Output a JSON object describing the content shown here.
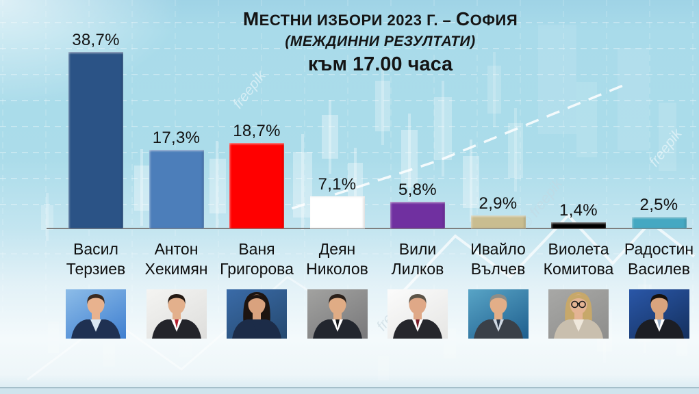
{
  "title": {
    "l1_lead1": "М",
    "l1_part1": "естни избори 2023 г. – ",
    "l1_lead2": "С",
    "l1_part2": "офия",
    "line2": "(Междинни резултати)",
    "line3": "към 17.00 часа"
  },
  "watermark": {
    "text": "freepik",
    "copy_text": "© freepik"
  },
  "chart_data": {
    "type": "bar",
    "title": "Местни избори 2023 г. – София",
    "subtitle": "(Междинни резултати)",
    "note": "към 17.00 часа",
    "categories": [
      "Васил Терзиев",
      "Антон Хекимян",
      "Ваня Григорова",
      "Деян Николов",
      "Вили Лилков",
      "Ивайло Вълчев",
      "Виолета Комитова",
      "Радостин Василев"
    ],
    "values": [
      38.7,
      17.3,
      18.7,
      7.1,
      5.8,
      2.9,
      1.4,
      2.5
    ],
    "value_labels": [
      "38,7%",
      "17,3%",
      "18,7%",
      "7,1%",
      "5,8%",
      "2,9%",
      "1,4%",
      "2,5%"
    ],
    "bar_colors": [
      "#2B5386",
      "#4C7EBA",
      "#FF0000",
      "#FFFFFF",
      "#7030A0",
      "#C9BD90",
      "#000000",
      "#45A8C2"
    ],
    "xlabel": "",
    "ylabel": "",
    "ylim": [
      0,
      40
    ],
    "grid": true,
    "legend": false
  },
  "candidates": [
    {
      "first": "Васил",
      "last": "Терзиев",
      "pct": "38,7%",
      "photo": {
        "pbg1": "#8cbce8",
        "pbg2": "#3f7fd0",
        "suit": "#1f3152",
        "skin": "#e8b28e",
        "hair": "#3a2a20",
        "tie": "none",
        "shirt": "#d9e7f4",
        "style": "man",
        "glasses": false,
        "has_tie": false
      }
    },
    {
      "first": "Антон",
      "last": "Хекимян",
      "pct": "17,3%",
      "photo": {
        "pbg1": "#f4f4f2",
        "pbg2": "#dededc",
        "suit": "#23242a",
        "skin": "#e3b08c",
        "hair": "#241a14",
        "tie": "#b22030",
        "shirt": "#ffffff",
        "style": "man",
        "glasses": false,
        "has_tie": true
      }
    },
    {
      "first": "Ваня",
      "last": "Григорова",
      "pct": "18,7%",
      "photo": {
        "pbg1": "#3a6ba8",
        "pbg2": "#25496f",
        "suit": "#1c2c48",
        "skin": "#d9a27e",
        "hair": "#1d1410",
        "tie": "none",
        "shirt": "#1c2c48",
        "style": "woman",
        "glasses": false,
        "has_tie": false
      }
    },
    {
      "first": "Деян",
      "last": "Николов",
      "pct": "7,1%",
      "photo": {
        "pbg1": "#a2a2a0",
        "pbg2": "#78787a",
        "suit": "#22262e",
        "skin": "#e0ac85",
        "hair": "#2a201a",
        "tie": "#16181c",
        "shirt": "#ffffff",
        "style": "man",
        "glasses": false,
        "has_tie": true
      }
    },
    {
      "first": "Вили",
      "last": "Лилков",
      "pct": "5,8%",
      "photo": {
        "pbg1": "#fbfbfb",
        "pbg2": "#e6e6e4",
        "suit": "#26272c",
        "skin": "#dfa887",
        "hair": "#5c5448",
        "tie": "#7a1f2b",
        "shirt": "#ffffff",
        "style": "man",
        "glasses": false,
        "has_tie": true
      }
    },
    {
      "first": "Ивайло",
      "last": "Вълчев",
      "pct": "2,9%",
      "photo": {
        "pbg1": "#58a4c6",
        "pbg2": "#1f5f8e",
        "suit": "#3a4048",
        "skin": "#e2ae88",
        "hair": "#8d8d88",
        "tie": "#2e3a4a",
        "shirt": "#cfd8e2",
        "style": "man",
        "glasses": false,
        "has_tie": true
      }
    },
    {
      "first": "Виолета",
      "last": "Комитова",
      "pct": "1,4%",
      "photo": {
        "pbg1": "#a8a8a6",
        "pbg2": "#8e8e8c",
        "suit": "#c9bfae",
        "skin": "#e4b494",
        "hair": "#c7a86a",
        "tie": "none",
        "shirt": "#efe8dc",
        "style": "woman",
        "glasses": true,
        "has_tie": false
      }
    },
    {
      "first": "Радостин",
      "last": "Василев",
      "pct": "2,5%",
      "photo": {
        "pbg1": "#2a57a8",
        "pbg2": "#14305e",
        "suit": "#1c1e24",
        "skin": "#d9a47e",
        "hair": "#17110c",
        "tie": "#9ab0c8",
        "shirt": "#ffffff",
        "style": "man",
        "glasses": false,
        "has_tie": true
      }
    }
  ]
}
